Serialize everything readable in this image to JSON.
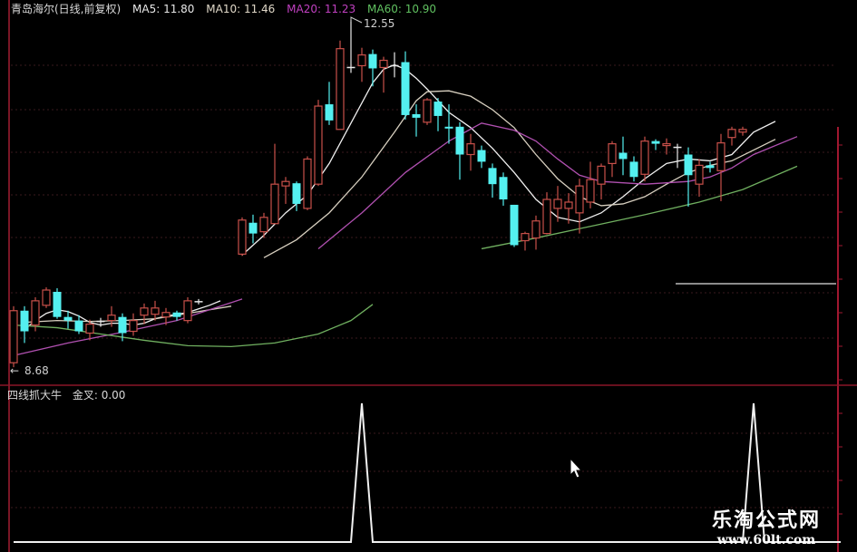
{
  "header": {
    "title": "青岛海尔(日线,前复权)",
    "ma5": "MA5: 11.80",
    "ma10": "MA10: 11.46",
    "ma20": "MA20: 11.23",
    "ma60": "MA60: 10.90"
  },
  "indicator_header": {
    "name": "四线抓大牛",
    "value": "金叉: 0.00"
  },
  "watermark": {
    "title": "乐淘公式网",
    "url": "www.60lt.com"
  },
  "colors": {
    "up": "#c8504a",
    "down": "#54f0f0",
    "doji": "#e8e8e8",
    "ma5": "#f0f0f0",
    "ma10": "#d8d0c0",
    "ma20": "#b050b0",
    "ma60": "#70b060",
    "axis": "#a01830",
    "indicator": "#f0f0f0"
  },
  "chart_data": [
    {
      "type": "candlestick",
      "title": "青岛海尔(日线,前复权)",
      "annotations": {
        "high_label": "12.55",
        "low_label": "8.68"
      },
      "candles_format": [
        "index",
        "open",
        "high",
        "low",
        "close"
      ],
      "candles": [
        [
          0,
          8.73,
          9.36,
          8.68,
          9.31
        ],
        [
          1,
          9.31,
          9.36,
          8.95,
          9.08
        ],
        [
          2,
          9.15,
          9.46,
          9.08,
          9.42
        ],
        [
          3,
          9.37,
          9.57,
          9.34,
          9.54
        ],
        [
          4,
          9.52,
          9.56,
          9.22,
          9.24
        ],
        [
          5,
          9.24,
          9.31,
          9.11,
          9.2
        ],
        [
          6,
          9.2,
          9.26,
          9.05,
          9.08
        ],
        [
          7,
          9.06,
          9.21,
          8.98,
          9.16
        ],
        [
          8,
          9.19,
          9.23,
          9.13,
          9.19
        ],
        [
          9,
          9.2,
          9.36,
          9.13,
          9.26
        ],
        [
          10,
          9.24,
          9.28,
          8.97,
          9.06
        ],
        [
          11,
          9.08,
          9.28,
          9.03,
          9.2
        ],
        [
          12,
          9.26,
          9.39,
          9.16,
          9.34
        ],
        [
          13,
          9.27,
          9.42,
          9.2,
          9.34
        ],
        [
          14,
          9.24,
          9.34,
          9.15,
          9.29
        ],
        [
          15,
          9.29,
          9.31,
          9.2,
          9.24
        ],
        [
          16,
          9.2,
          9.46,
          9.17,
          9.42
        ],
        [
          17,
          9.41,
          9.44,
          9.38,
          9.41
        ],
        [
          21,
          9.94,
          10.35,
          9.92,
          10.32
        ],
        [
          22,
          10.29,
          10.38,
          10.06,
          10.17
        ],
        [
          23,
          10.19,
          10.4,
          10.12,
          10.35
        ],
        [
          24,
          10.28,
          11.17,
          10.28,
          10.72
        ],
        [
          25,
          10.7,
          10.8,
          10.5,
          10.75
        ],
        [
          26,
          10.73,
          10.75,
          10.42,
          10.5
        ],
        [
          27,
          10.45,
          11.03,
          10.43,
          11.0
        ],
        [
          28,
          10.72,
          11.66,
          10.7,
          11.59
        ],
        [
          29,
          11.61,
          11.86,
          11.38,
          11.43
        ],
        [
          30,
          11.33,
          12.32,
          11.33,
          12.23
        ],
        [
          31,
          12.02,
          12.55,
          11.96,
          12.02
        ],
        [
          32,
          12.04,
          12.24,
          11.86,
          12.16
        ],
        [
          33,
          12.17,
          12.22,
          11.81,
          12.01
        ],
        [
          34,
          12.02,
          12.14,
          11.74,
          12.1
        ],
        [
          35,
          12.04,
          12.19,
          11.91,
          12.04
        ],
        [
          36,
          12.08,
          12.2,
          11.44,
          11.49
        ],
        [
          37,
          11.5,
          11.61,
          11.25,
          11.46
        ],
        [
          38,
          11.41,
          11.68,
          11.38,
          11.66
        ],
        [
          39,
          11.64,
          11.68,
          11.31,
          11.48
        ],
        [
          40,
          11.36,
          11.61,
          11.17,
          11.34
        ],
        [
          41,
          11.36,
          11.41,
          10.77,
          11.05
        ],
        [
          42,
          11.05,
          11.28,
          10.87,
          11.17
        ],
        [
          43,
          11.1,
          11.15,
          10.9,
          10.97
        ],
        [
          44,
          10.9,
          10.95,
          10.57,
          10.72
        ],
        [
          45,
          10.8,
          10.85,
          10.48,
          10.55
        ],
        [
          46,
          10.49,
          10.49,
          10.02,
          10.04
        ],
        [
          47,
          10.09,
          10.19,
          9.98,
          10.17
        ],
        [
          48,
          10.12,
          10.37,
          9.99,
          10.31
        ],
        [
          49,
          10.17,
          10.63,
          10.16,
          10.55
        ],
        [
          50,
          10.45,
          10.7,
          10.3,
          10.55
        ],
        [
          51,
          10.45,
          10.62,
          10.28,
          10.52
        ],
        [
          52,
          10.4,
          10.78,
          10.17,
          10.7
        ],
        [
          53,
          10.52,
          10.97,
          10.45,
          10.77
        ],
        [
          54,
          10.72,
          10.95,
          10.55,
          10.92
        ],
        [
          55,
          10.95,
          11.2,
          10.8,
          11.17
        ],
        [
          56,
          11.07,
          11.25,
          10.82,
          11.0
        ],
        [
          57,
          10.97,
          11.03,
          10.75,
          10.8
        ],
        [
          58,
          10.83,
          11.25,
          10.75,
          11.2
        ],
        [
          59,
          11.2,
          11.22,
          11.1,
          11.17
        ],
        [
          60,
          11.15,
          11.23,
          11.05,
          11.17
        ],
        [
          61,
          11.13,
          11.17,
          10.9,
          11.13
        ],
        [
          62,
          11.05,
          11.13,
          10.47,
          10.82
        ],
        [
          63,
          10.72,
          11.0,
          10.58,
          10.93
        ],
        [
          64,
          10.93,
          10.97,
          10.85,
          10.9
        ],
        [
          65,
          10.87,
          11.28,
          10.53,
          11.18
        ],
        [
          66,
          11.24,
          11.36,
          11.15,
          11.33
        ],
        [
          67,
          11.3,
          11.36,
          11.26,
          11.33
        ]
      ],
      "series": [
        {
          "name": "MA5",
          "segments": [
            [
              [
                1,
                9.1
              ],
              [
                2,
                9.2
              ],
              [
                3,
                9.28
              ],
              [
                4,
                9.32
              ],
              [
                5,
                9.3
              ],
              [
                6,
                9.25
              ],
              [
                7,
                9.18
              ],
              [
                8,
                9.15
              ],
              [
                9,
                9.17
              ],
              [
                10,
                9.17
              ],
              [
                11,
                9.15
              ],
              [
                12,
                9.17
              ],
              [
                13,
                9.22
              ],
              [
                14,
                9.25
              ],
              [
                15,
                9.27
              ],
              [
                16,
                9.29
              ],
              [
                17,
                9.33
              ],
              [
                18,
                9.37
              ],
              [
                19,
                9.42
              ]
            ],
            [
              [
                21,
                9.93
              ],
              [
                23,
                10.15
              ],
              [
                25,
                10.4
              ],
              [
                27,
                10.6
              ],
              [
                29,
                10.95
              ],
              [
                31,
                11.4
              ],
              [
                33,
                11.85
              ],
              [
                34,
                12.0
              ],
              [
                35,
                12.05
              ],
              [
                36,
                12.0
              ],
              [
                37,
                11.9
              ],
              [
                38,
                11.78
              ],
              [
                39,
                11.65
              ],
              [
                40,
                11.52
              ],
              [
                42,
                11.35
              ],
              [
                44,
                11.12
              ],
              [
                46,
                10.85
              ],
              [
                48,
                10.55
              ],
              [
                50,
                10.35
              ],
              [
                52,
                10.3
              ],
              [
                54,
                10.4
              ],
              [
                56,
                10.58
              ],
              [
                58,
                10.78
              ],
              [
                60,
                10.95
              ],
              [
                62,
                11.0
              ],
              [
                64,
                10.98
              ],
              [
                66,
                11.05
              ],
              [
                68,
                11.3
              ],
              [
                70,
                11.42
              ]
            ]
          ]
        },
        {
          "name": "MA10",
          "segments": [
            [
              [
                1,
                9.18
              ],
              [
                4,
                9.2
              ],
              [
                7,
                9.19
              ],
              [
                10,
                9.2
              ],
              [
                13,
                9.22
              ],
              [
                16,
                9.28
              ],
              [
                20,
                9.36
              ]
            ],
            [
              [
                23,
                9.9
              ],
              [
                26,
                10.1
              ],
              [
                29,
                10.4
              ],
              [
                32,
                10.8
              ],
              [
                35,
                11.3
              ],
              [
                37,
                11.65
              ],
              [
                38,
                11.75
              ],
              [
                40,
                11.76
              ],
              [
                42,
                11.7
              ],
              [
                44,
                11.55
              ],
              [
                46,
                11.35
              ],
              [
                48,
                11.05
              ],
              [
                50,
                10.78
              ],
              [
                52,
                10.58
              ],
              [
                54,
                10.48
              ],
              [
                56,
                10.5
              ],
              [
                58,
                10.58
              ],
              [
                60,
                10.72
              ],
              [
                62,
                10.85
              ],
              [
                64,
                10.93
              ],
              [
                66,
                10.98
              ],
              [
                68,
                11.1
              ],
              [
                70,
                11.22
              ]
            ]
          ]
        },
        {
          "name": "MA20",
          "segments": [
            [
              [
                0,
                8.81
              ],
              [
                5,
                8.95
              ],
              [
                10,
                9.07
              ],
              [
                15,
                9.2
              ],
              [
                21,
                9.44
              ]
            ],
            [
              [
                28,
                10.0
              ],
              [
                32,
                10.4
              ],
              [
                36,
                10.85
              ],
              [
                40,
                11.2
              ],
              [
                43,
                11.4
              ],
              [
                46,
                11.32
              ],
              [
                48,
                11.2
              ],
              [
                50,
                11.0
              ],
              [
                52,
                10.82
              ],
              [
                54,
                10.75
              ],
              [
                58,
                10.72
              ],
              [
                62,
                10.75
              ],
              [
                64,
                10.8
              ],
              [
                66,
                10.9
              ],
              [
                68,
                11.05
              ],
              [
                72,
                11.25
              ]
            ]
          ]
        },
        {
          "name": "MA60",
          "segments": [
            [
              [
                0,
                9.15
              ],
              [
                4,
                9.12
              ],
              [
                8,
                9.05
              ],
              [
                12,
                8.98
              ],
              [
                16,
                8.92
              ],
              [
                20,
                8.91
              ],
              [
                24,
                8.95
              ],
              [
                28,
                9.05
              ],
              [
                31,
                9.2
              ],
              [
                33,
                9.38
              ]
            ],
            [
              [
                43,
                10.0
              ],
              [
                48,
                10.12
              ],
              [
                53,
                10.25
              ],
              [
                58,
                10.38
              ],
              [
                63,
                10.52
              ],
              [
                67,
                10.66
              ],
              [
                72,
                10.92
              ]
            ]
          ]
        }
      ]
    },
    {
      "type": "line",
      "title": "四线抓大牛",
      "series": [
        {
          "name": "金叉",
          "values_format": [
            "index",
            "value"
          ],
          "points": [
            [
              0,
              0
            ],
            [
              31,
              0
            ],
            [
              32,
              1
            ],
            [
              33,
              0
            ],
            [
              67,
              0
            ],
            [
              68,
              1
            ],
            [
              69,
              0
            ],
            [
              76,
              0
            ]
          ]
        }
      ]
    }
  ]
}
